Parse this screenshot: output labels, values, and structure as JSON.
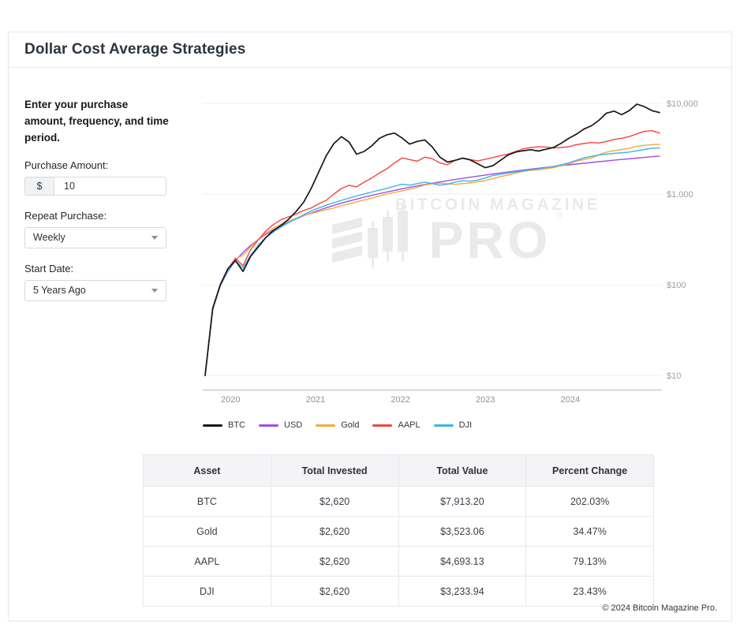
{
  "page": {
    "title": "Dollar Cost Average Strategies",
    "footer": "© 2024 Bitcoin Magazine Pro."
  },
  "form": {
    "intro": "Enter your purchase amount, frequency, and time period.",
    "purchase_amount_label": "Purchase Amount:",
    "currency_prefix": "$",
    "purchase_amount_value": "10",
    "repeat_label": "Repeat Purchase:",
    "repeat_value": "Weekly",
    "start_label": "Start Date:",
    "start_value": "5 Years Ago"
  },
  "chart_data": {
    "type": "line",
    "title": "",
    "x_axis": {
      "ticks": [
        "2020",
        "2021",
        "2022",
        "2023",
        "2024"
      ],
      "start_year": 2019.7,
      "end_year": 2025.05
    },
    "y_axis": {
      "scale": "log",
      "ticks": [
        "$10,000",
        "$1,000",
        "$100",
        "$10"
      ],
      "tick_values": [
        10000,
        1000,
        100,
        10
      ],
      "range": [
        10,
        10000
      ]
    },
    "watermark": {
      "line1": "BITCOIN MAGAZINE",
      "line2": "PRO",
      "reg": "®"
    },
    "note": "Series sampled monthly, evenly spaced from start_year to end_year; cumulative value of $10 weekly DCA, log scale.",
    "series": [
      {
        "name": "BTC",
        "color": "#15161a",
        "values": [
          10,
          55,
          100,
          150,
          185,
          140,
          205,
          260,
          330,
          395,
          450,
          525,
          640,
          810,
          1150,
          1750,
          2650,
          3600,
          4300,
          3750,
          2750,
          2950,
          3400,
          4100,
          4500,
          4700,
          4150,
          3550,
          3800,
          3950,
          3300,
          2550,
          2250,
          2350,
          2480,
          2380,
          2150,
          1950,
          2050,
          2350,
          2700,
          2900,
          3000,
          3080,
          2980,
          3120,
          3260,
          3620,
          4100,
          4550,
          5200,
          5650,
          6500,
          7800,
          8200,
          7500,
          8300,
          9800,
          9200,
          8300,
          7913
        ]
      },
      {
        "name": "USD",
        "color": "#a04de8",
        "values": [
          10,
          53,
          97,
          140,
          184,
          227,
          271,
          314,
          358,
          401,
          445,
          488,
          532,
          575,
          619,
          662,
          706,
          749,
          793,
          836,
          880,
          923,
          967,
          1010,
          1054,
          1097,
          1141,
          1184,
          1228,
          1271,
          1315,
          1358,
          1402,
          1445,
          1489,
          1532,
          1576,
          1619,
          1663,
          1706,
          1750,
          1793,
          1837,
          1880,
          1924,
          1967,
          2011,
          2054,
          2098,
          2141,
          2185,
          2228,
          2272,
          2315,
          2359,
          2402,
          2446,
          2489,
          2533,
          2576,
          2620
        ]
      },
      {
        "name": "Gold",
        "color": "#f8a83c",
        "values": [
          10,
          53,
          98,
          145,
          192,
          212,
          262,
          312,
          370,
          420,
          462,
          500,
          540,
          578,
          610,
          640,
          672,
          702,
          740,
          780,
          820,
          858,
          900,
          950,
          1000,
          1040,
          1082,
          1130,
          1182,
          1260,
          1300,
          1318,
          1298,
          1280,
          1302,
          1322,
          1360,
          1405,
          1480,
          1558,
          1620,
          1700,
          1778,
          1820,
          1852,
          1900,
          1952,
          2050,
          2150,
          2300,
          2400,
          2500,
          2700,
          2900,
          3000,
          3100,
          3200,
          3350,
          3450,
          3500,
          3523
        ]
      },
      {
        "name": "AAPL",
        "color": "#f4453c",
        "values": [
          10,
          54,
          100,
          148,
          196,
          162,
          242,
          312,
          390,
          460,
          520,
          560,
          600,
          660,
          702,
          780,
          852,
          1000,
          1150,
          1250,
          1200,
          1350,
          1500,
          1700,
          1900,
          2200,
          2500,
          2400,
          2300,
          2550,
          2450,
          2200,
          2100,
          2350,
          2500,
          2400,
          2320,
          2420,
          2520,
          2650,
          2750,
          2950,
          3150,
          3250,
          3320,
          3300,
          3220,
          3260,
          3320,
          3500,
          3600,
          3700,
          3650,
          3800,
          4000,
          4120,
          4300,
          4600,
          4900,
          5000,
          4693
        ]
      },
      {
        "name": "DJI",
        "color": "#38b6e6",
        "values": [
          10,
          53,
          97,
          142,
          186,
          152,
          212,
          272,
          332,
          382,
          432,
          482,
          532,
          592,
          652,
          702,
          752,
          802,
          852,
          902,
          952,
          1002,
          1052,
          1102,
          1152,
          1222,
          1282,
          1252,
          1302,
          1352,
          1302,
          1252,
          1282,
          1352,
          1402,
          1382,
          1422,
          1502,
          1602,
          1652,
          1702,
          1752,
          1802,
          1852,
          1902,
          1952,
          2002,
          2102,
          2202,
          2352,
          2502,
          2602,
          2702,
          2752,
          2802,
          2852,
          2902,
          3002,
          3102,
          3202,
          3234
        ]
      }
    ]
  },
  "table": {
    "headers": [
      "Asset",
      "Total Invested",
      "Total Value",
      "Percent Change"
    ],
    "rows": [
      [
        "BTC",
        "$2,620",
        "$7,913.20",
        "202.03%"
      ],
      [
        "Gold",
        "$2,620",
        "$3,523.06",
        "34.47%"
      ],
      [
        "AAPL",
        "$2,620",
        "$4,693.13",
        "79.13%"
      ],
      [
        "DJI",
        "$2,620",
        "$3,233.94",
        "23.43%"
      ]
    ]
  }
}
